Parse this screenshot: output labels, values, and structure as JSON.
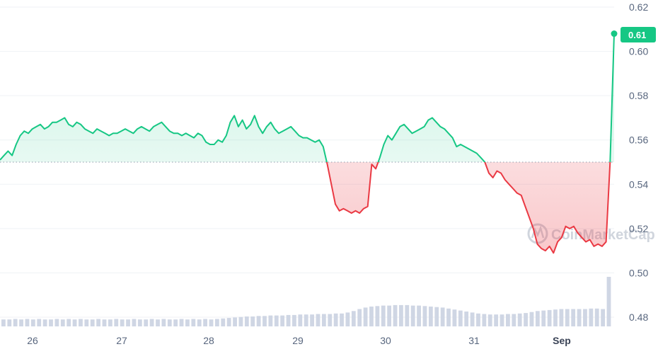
{
  "colors": {
    "up": "#16c784",
    "down": "#ea3943",
    "grid": "#eff2f5",
    "volume": "#cfd6e4",
    "tick_text": "#58667e",
    "badge_bg": "#16c784"
  },
  "watermark": "CoinMarketCap",
  "price_badge": "0.61",
  "chart_data": {
    "type": "line",
    "title": "",
    "xlabel": "",
    "ylabel": "",
    "ylim": [
      0.475,
      0.625
    ],
    "y_ticks": [
      "0.62",
      "0.60",
      "0.58",
      "0.56",
      "0.54",
      "0.52",
      "0.50",
      "0.48"
    ],
    "x_ticks": [
      "26",
      "27",
      "28",
      "29",
      "30",
      "31",
      "Sep"
    ],
    "baseline": 0.55,
    "grid": true,
    "series": [
      {
        "values": [
          0.551,
          0.553,
          0.555,
          0.553,
          0.558,
          0.562,
          0.564,
          0.563,
          0.565,
          0.566,
          0.567,
          0.565,
          0.566,
          0.568,
          0.568,
          0.569,
          0.57,
          0.567,
          0.566,
          0.568,
          0.567,
          0.565,
          0.564,
          0.563,
          0.565,
          0.564,
          0.563,
          0.562,
          0.563,
          0.563,
          0.564,
          0.565,
          0.564,
          0.563,
          0.565,
          0.566,
          0.565,
          0.564,
          0.566,
          0.567,
          0.568,
          0.566,
          0.564,
          0.563,
          0.563,
          0.562,
          0.563,
          0.562,
          0.561,
          0.563,
          0.562,
          0.559,
          0.558,
          0.558,
          0.56,
          0.559,
          0.562,
          0.568,
          0.571,
          0.566,
          0.569,
          0.565,
          0.567,
          0.571,
          0.566,
          0.563,
          0.566,
          0.568,
          0.565,
          0.563,
          0.564,
          0.565,
          0.566,
          0.564,
          0.562,
          0.561,
          0.561,
          0.56,
          0.559,
          0.56,
          0.557,
          0.549,
          0.54,
          0.531,
          0.528,
          0.529,
          0.528,
          0.527,
          0.528,
          0.527,
          0.529,
          0.53,
          0.549,
          0.547,
          0.552,
          0.558,
          0.562,
          0.56,
          0.563,
          0.566,
          0.567,
          0.565,
          0.563,
          0.564,
          0.565,
          0.566,
          0.569,
          0.57,
          0.568,
          0.566,
          0.565,
          0.563,
          0.561,
          0.557,
          0.558,
          0.557,
          0.556,
          0.555,
          0.554,
          0.552,
          0.55,
          0.545,
          0.543,
          0.546,
          0.545,
          0.542,
          0.54,
          0.538,
          0.536,
          0.535,
          0.53,
          0.525,
          0.52,
          0.513,
          0.511,
          0.51,
          0.512,
          0.509,
          0.514,
          0.516,
          0.521,
          0.52,
          0.521,
          0.518,
          0.516,
          0.514,
          0.515,
          0.512,
          0.513,
          0.512,
          0.514,
          0.55,
          0.608
        ]
      }
    ],
    "volume": [
      0.14,
      0.14,
      0.15,
      0.14,
      0.15,
      0.14,
      0.15,
      0.14,
      0.14,
      0.15,
      0.14,
      0.15,
      0.14,
      0.15,
      0.14,
      0.14,
      0.15,
      0.14,
      0.14,
      0.15,
      0.14,
      0.14,
      0.15,
      0.14,
      0.14,
      0.15,
      0.14,
      0.15,
      0.14,
      0.14,
      0.15,
      0.14,
      0.15,
      0.14,
      0.15,
      0.14,
      0.15,
      0.16,
      0.17,
      0.18,
      0.19,
      0.2,
      0.2,
      0.21,
      0.21,
      0.22,
      0.22,
      0.22,
      0.23,
      0.23,
      0.24,
      0.24,
      0.24,
      0.25,
      0.25,
      0.25,
      0.26,
      0.26,
      0.28,
      0.31,
      0.35,
      0.38,
      0.4,
      0.41,
      0.42,
      0.42,
      0.43,
      0.43,
      0.43,
      0.42,
      0.42,
      0.41,
      0.4,
      0.39,
      0.38,
      0.36,
      0.34,
      0.32,
      0.3,
      0.28,
      0.26,
      0.25,
      0.24,
      0.24,
      0.24,
      0.25,
      0.25,
      0.26,
      0.27,
      0.29,
      0.31,
      0.32,
      0.33,
      0.34,
      0.35,
      0.35,
      0.35,
      0.35,
      0.35,
      0.36,
      0.36,
      0.35,
      1.0
    ]
  }
}
